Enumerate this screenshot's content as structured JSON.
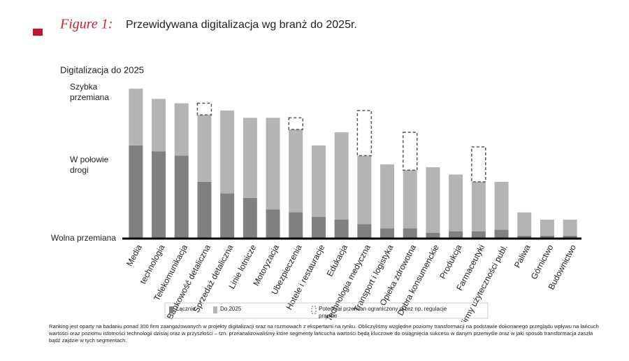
{
  "chart_data": {
    "type": "stacked_bar",
    "figure_label": "Figure 1:",
    "title": "Przewidywana digitalizacja wg branż do 2025r.",
    "y_label": "Digitalizacja do 2025",
    "categories": [
      "Media",
      "technologia",
      "Telekomunikacja",
      "Bankowość detaliczna",
      "Sprzedaż detaliczna",
      "Linie lotnicze",
      "Motoryzacja",
      "Ubezpieczenia",
      "Hotele i restauracje",
      "Edukacja",
      "Technologia medyczna",
      "Transport i logistyka",
      "Opieka zdrowotna",
      "Dobra konsumenckie",
      "Produkcja",
      "Farmaceutyki",
      "Firmy użyteczności publ.",
      "Paliwa",
      "Górnictwo",
      "Budownictwo"
    ],
    "series": [
      {
        "name": "Łącznie",
        "color": "#808080",
        "style": "solid",
        "values": [
          64,
          60,
          57,
          39,
          31,
          28,
          20,
          18,
          15,
          13,
          10,
          7,
          7,
          4,
          5,
          5,
          6,
          2,
          2,
          2
        ]
      },
      {
        "name": "Do 2025",
        "color": "#b4b4b4",
        "style": "solid",
        "values": [
          39,
          36,
          36,
          46,
          57,
          55,
          63,
          57,
          49,
          60,
          47,
          44,
          40,
          45,
          39,
          34,
          33,
          16,
          11,
          11
        ]
      },
      {
        "name": "Potencjał przemian ograniczony przez np. regulacje prawne",
        "color": "#555555",
        "style": "dashed",
        "values": [
          null,
          null,
          null,
          8,
          null,
          null,
          null,
          8,
          null,
          null,
          31,
          null,
          26,
          null,
          null,
          24,
          null,
          null,
          null,
          null
        ]
      }
    ],
    "ylim": [
      0,
      100
    ],
    "yticks": [
      {
        "value": 0,
        "label": "Wolna przemiana"
      },
      {
        "value": 50,
        "label": "W połowie drogi"
      },
      {
        "value": 100,
        "label": "Szybka przemiana"
      }
    ],
    "footnote": "Ranking jest oparty na badaniu ponad 300 firm zaangażowanych w projekty digitalizacji oraz na rozmowach z ekspertami na rynku. Obliczyliśmy względne poziomy transformacji na podstawie dokonanego przeglądu wpływu na łańcuch wartości oraz poziomu istotności technologii dzisiaj oraz w przyszłości – tzn. przeanalizowaliśmy które segmenty łańcucha wartości będą kluczowe do osiągnięcia sukcesu w danym przemyśle oraz w jaki sposób transformacja zaszła bądź zajdzie w tych segmentach."
  }
}
